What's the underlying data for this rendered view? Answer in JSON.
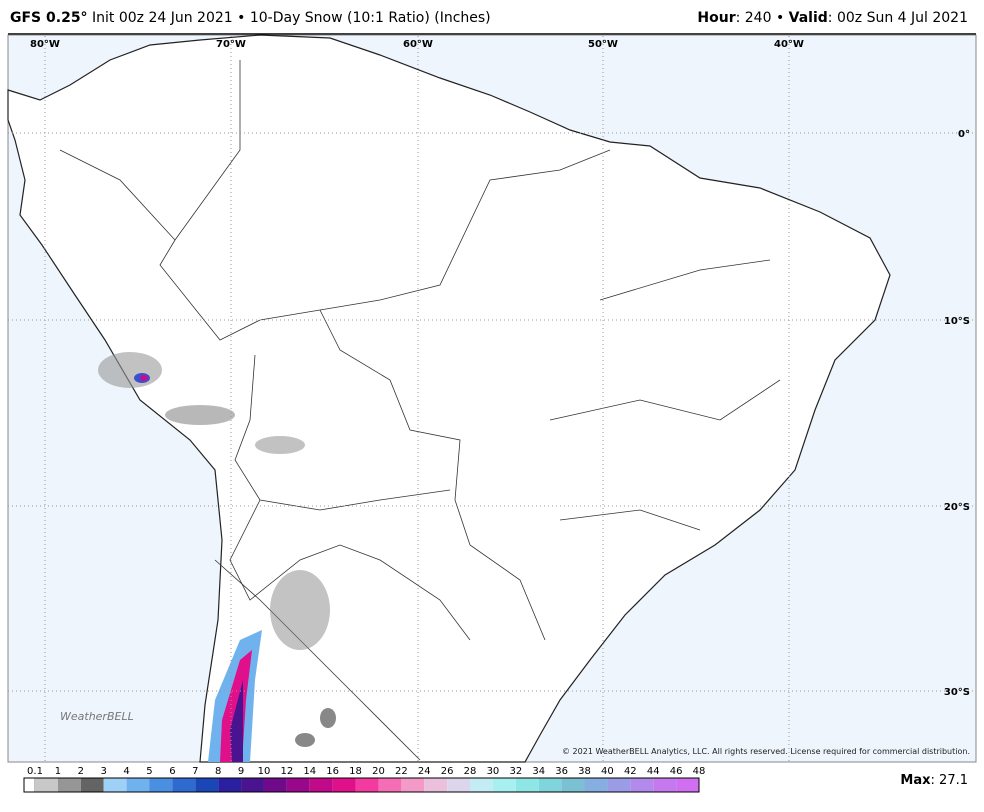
{
  "header": {
    "model": "GFS 0.25°",
    "run": "Init 00z 24 Jun 2021 • 10-Day Snow (10:1 Ratio) (Inches)",
    "hour_label": "Hour",
    "hour": ": 240 • ",
    "valid_label": "Valid",
    "valid": ": 00z Sun 4 Jul 2021"
  },
  "map": {
    "lon_labels": [
      "80°W",
      "70°W",
      "60°W",
      "50°W",
      "40°W"
    ],
    "lat_labels": [
      "0°",
      "10°S",
      "20°S",
      "30°S"
    ],
    "copyright": "© 2021 WeatherBELL Analytics, LLC. All rights reserved. License required for commercial distribution.",
    "logo": "WeatherBELL"
  },
  "colorbar": {
    "labels": [
      "0.1",
      "1",
      "2",
      "3",
      "4",
      "5",
      "6",
      "7",
      "8",
      "9",
      "10",
      "12",
      "14",
      "16",
      "18",
      "20",
      "22",
      "24",
      "26",
      "28",
      "30",
      "32",
      "34",
      "36",
      "38",
      "40",
      "42",
      "44",
      "46",
      "48"
    ],
    "colors": [
      "#c8c8c8",
      "#969696",
      "#646464",
      "#9fd0f5",
      "#6fb2ee",
      "#4a8fe0",
      "#2e6ad0",
      "#1b46b8",
      "#2a1fa0",
      "#4a1390",
      "#6f0a8a",
      "#99088a",
      "#c00a8a",
      "#e0108a",
      "#f23aa0",
      "#f56eb5",
      "#f39ac8",
      "#eac0dc",
      "#dcd6ec",
      "#c4ecf4",
      "#a8f0f0",
      "#8ee6e6",
      "#80d4dc",
      "#7cc0d4",
      "#86aee0",
      "#9a9ce6",
      "#b28aec",
      "#c47aee",
      "#d070f0"
    ],
    "max_label": "Max",
    "max": ": 27.1"
  }
}
